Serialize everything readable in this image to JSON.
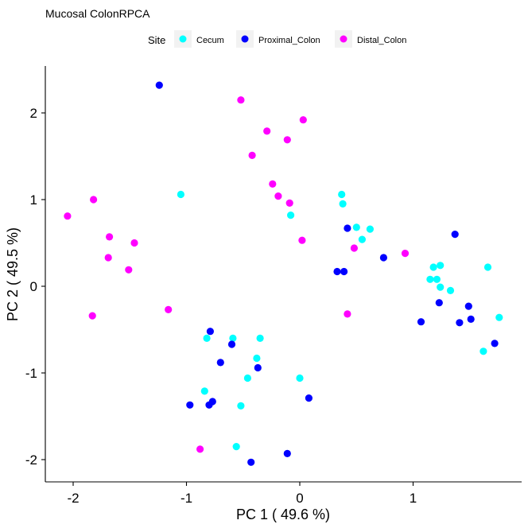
{
  "chart_data": {
    "type": "scatter",
    "title": "Mucosal ColonRPCA",
    "xlabel": "PC 1 ( 49.6 %)",
    "ylabel": "PC 2 ( 49.5 %)",
    "xlim": [
      -2.22,
      1.9
    ],
    "ylim": [
      -2.22,
      2.56
    ],
    "xticks": [
      -2,
      -1,
      0,
      1
    ],
    "yticks": [
      -2,
      -1,
      0,
      1,
      2
    ],
    "grid": false,
    "legend_position": "top",
    "legend_title": "Site",
    "series": [
      {
        "name": "Cecum",
        "color": "#00FFFF",
        "points": [
          [
            -1.05,
            1.06
          ],
          [
            0.37,
            1.06
          ],
          [
            0.38,
            0.95
          ],
          [
            -0.08,
            0.82
          ],
          [
            0.5,
            0.68
          ],
          [
            0.62,
            0.66
          ],
          [
            0.55,
            0.54
          ],
          [
            1.18,
            0.22
          ],
          [
            1.24,
            0.24
          ],
          [
            1.15,
            0.08
          ],
          [
            1.21,
            0.08
          ],
          [
            1.24,
            -0.01
          ],
          [
            1.33,
            -0.05
          ],
          [
            1.66,
            0.22
          ],
          [
            1.76,
            -0.36
          ],
          [
            1.62,
            -0.75
          ],
          [
            -0.82,
            -0.6
          ],
          [
            -0.59,
            -0.6
          ],
          [
            -0.35,
            -0.6
          ],
          [
            -0.38,
            -0.83
          ],
          [
            -0.46,
            -1.06
          ],
          [
            0.0,
            -1.06
          ],
          [
            -0.84,
            -1.21
          ],
          [
            -0.52,
            -1.38
          ],
          [
            -0.56,
            -1.85
          ]
        ]
      },
      {
        "name": "Proximal_Colon",
        "color": "#0000FF",
        "points": [
          [
            -1.24,
            2.32
          ],
          [
            0.42,
            0.67
          ],
          [
            0.74,
            0.33
          ],
          [
            0.33,
            0.17
          ],
          [
            0.39,
            0.17
          ],
          [
            1.37,
            0.6
          ],
          [
            1.23,
            -0.19
          ],
          [
            1.49,
            -0.23
          ],
          [
            1.07,
            -0.41
          ],
          [
            1.41,
            -0.42
          ],
          [
            1.51,
            -0.38
          ],
          [
            1.72,
            -0.66
          ],
          [
            -0.79,
            -0.52
          ],
          [
            -0.6,
            -0.67
          ],
          [
            -0.7,
            -0.88
          ],
          [
            -0.37,
            -0.94
          ],
          [
            -0.97,
            -1.37
          ],
          [
            -0.8,
            -1.37
          ],
          [
            -0.77,
            -1.33
          ],
          [
            0.08,
            -1.29
          ],
          [
            -0.11,
            -1.93
          ],
          [
            -0.43,
            -2.03
          ]
        ]
      },
      {
        "name": "Distal_Colon",
        "color": "#FF00FF",
        "points": [
          [
            -0.52,
            2.15
          ],
          [
            0.03,
            1.92
          ],
          [
            -0.29,
            1.79
          ],
          [
            -0.11,
            1.69
          ],
          [
            -0.42,
            1.51
          ],
          [
            -0.24,
            1.18
          ],
          [
            -0.19,
            1.04
          ],
          [
            -0.09,
            0.96
          ],
          [
            0.02,
            0.53
          ],
          [
            0.48,
            0.44
          ],
          [
            0.93,
            0.38
          ],
          [
            0.42,
            -0.32
          ],
          [
            -2.05,
            0.81
          ],
          [
            -1.82,
            1.0
          ],
          [
            -1.68,
            0.57
          ],
          [
            -1.46,
            0.5
          ],
          [
            -1.69,
            0.33
          ],
          [
            -1.51,
            0.19
          ],
          [
            -1.83,
            -0.34
          ],
          [
            -1.16,
            -0.27
          ],
          [
            -0.88,
            -1.88
          ]
        ]
      }
    ]
  }
}
